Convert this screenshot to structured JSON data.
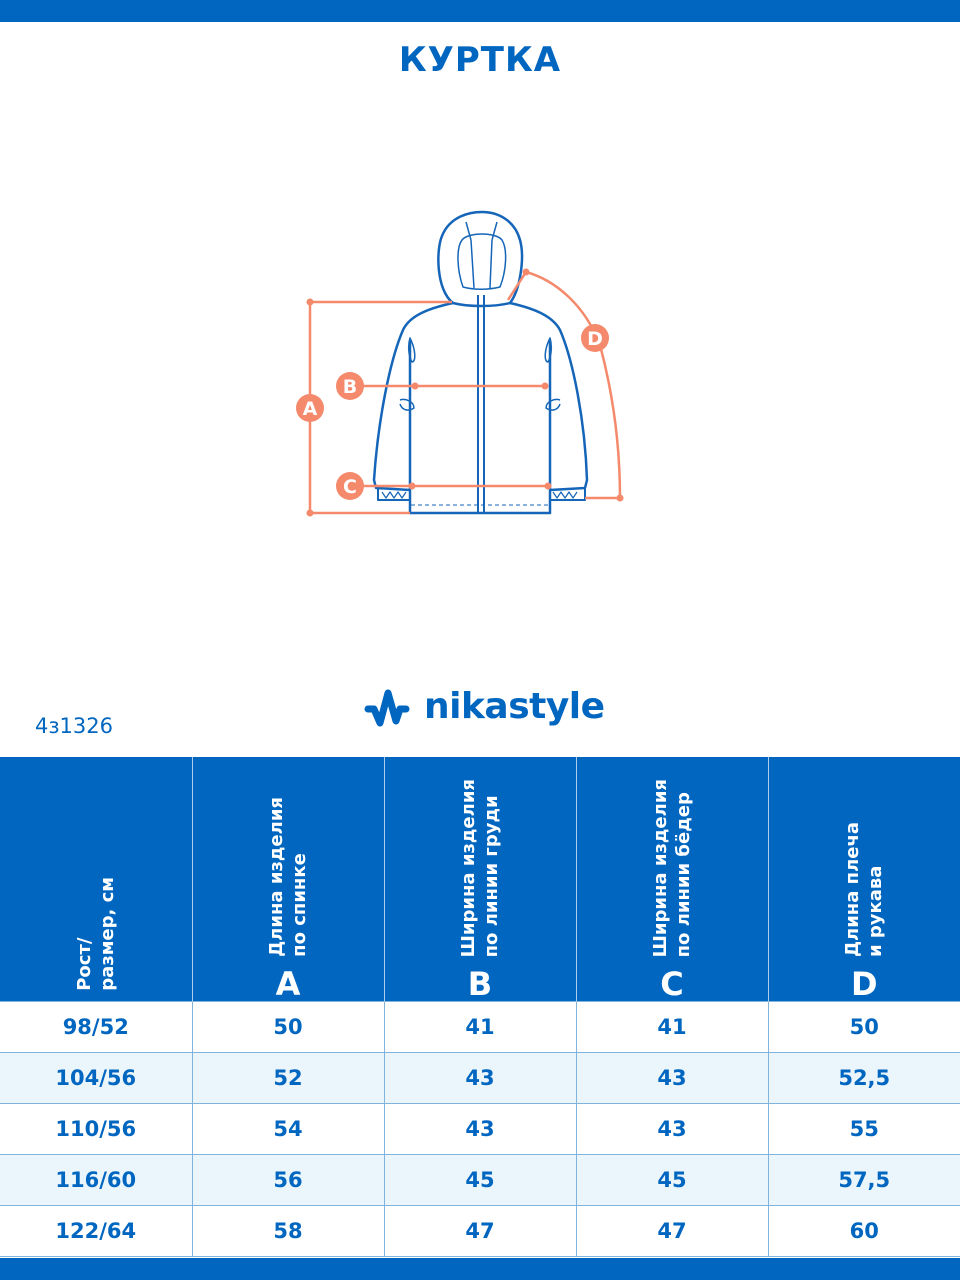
{
  "title": "КУРТКА",
  "article": "4з1326",
  "brand": {
    "name": "nikastyle",
    "icon": "nikastyle-wave-logo"
  },
  "colors": {
    "brand_blue": "#0066c0",
    "measure_orange": "#f4896b",
    "alt_row": "#eaf5fc"
  },
  "diagram": {
    "labels": [
      "A",
      "B",
      "C",
      "D"
    ]
  },
  "table": {
    "headers": [
      {
        "label": "Рост/\nразмер, см",
        "letter": ""
      },
      {
        "label": "Длина изделия\nпо спинке",
        "letter": "A"
      },
      {
        "label": "Ширина изделия\nпо линии груди",
        "letter": "B"
      },
      {
        "label": "Ширина изделия\nпо линии бёдер",
        "letter": "C"
      },
      {
        "label": "Длина плеча\nи рукава",
        "letter": "D"
      }
    ],
    "rows": [
      [
        "98/52",
        "50",
        "41",
        "41",
        "50"
      ],
      [
        "104/56",
        "52",
        "43",
        "43",
        "52,5"
      ],
      [
        "110/56",
        "54",
        "43",
        "43",
        "55"
      ],
      [
        "116/60",
        "56",
        "45",
        "45",
        "57,5"
      ],
      [
        "122/64",
        "58",
        "47",
        "47",
        "60"
      ]
    ]
  }
}
